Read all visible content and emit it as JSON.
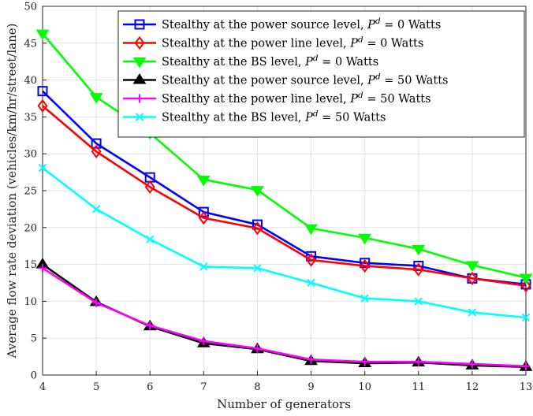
{
  "chart_data": {
    "type": "line",
    "xlabel": "Number of generators",
    "ylabel": "Average flow rate deviation (vehicles/km/hr/street/lane)",
    "x": [
      4,
      5,
      6,
      7,
      8,
      9,
      10,
      11,
      12,
      13
    ],
    "xlim": [
      4,
      13
    ],
    "ylim": [
      0,
      50
    ],
    "xticks": [
      "4",
      "5",
      "6",
      "7",
      "8",
      "9",
      "10",
      "11",
      "12",
      "13"
    ],
    "yticks": [
      "0",
      "5",
      "10",
      "15",
      "20",
      "25",
      "30",
      "35",
      "40",
      "45",
      "50"
    ],
    "grid": true,
    "legend_position": "top-right",
    "series": [
      {
        "name": "Stealthy at the power source level, P^d = 0 Watts",
        "legend_prefix": "Stealthy at the power source level, ",
        "legend_var": "P",
        "legend_sup": "d",
        "legend_suffix": " = 0 Watts",
        "color": "#0000ff",
        "marker": "square",
        "values": [
          38.5,
          31.4,
          26.8,
          22.1,
          20.4,
          16.1,
          15.2,
          14.8,
          13.1,
          12.3
        ]
      },
      {
        "name": "Stealthy at the power line level, P^d = 0 Watts",
        "legend_prefix": "Stealthy at the power line level, ",
        "legend_var": "P",
        "legend_sup": "d",
        "legend_suffix": " = 0 Watts",
        "color": "#ff0000",
        "marker": "diamond",
        "values": [
          36.5,
          30.3,
          25.5,
          21.3,
          19.9,
          15.6,
          14.8,
          14.3,
          13.1,
          12.1
        ]
      },
      {
        "name": "Stealthy at the BS level, P^d = 0 Watts",
        "legend_prefix": "Stealthy at the BS level, ",
        "legend_var": "P",
        "legend_sup": "d",
        "legend_suffix": " = 0 Watts",
        "color": "#00ff00",
        "marker": "triangle-down",
        "values": [
          46.3,
          37.7,
          32.8,
          26.5,
          25.1,
          19.9,
          18.6,
          17.1,
          14.9,
          13.2
        ]
      },
      {
        "name": "Stealthy at the power source level, P^d = 50 Watts",
        "legend_prefix": "Stealthy at the power source level, ",
        "legend_var": "P",
        "legend_sup": "d",
        "legend_suffix": " = 50 Watts",
        "color": "#000000",
        "marker": "triangle-up",
        "values": [
          15.0,
          9.9,
          6.6,
          4.3,
          3.5,
          1.9,
          1.6,
          1.7,
          1.3,
          1.1
        ]
      },
      {
        "name": "Stealthy at the power line level, P^d = 50 Watts",
        "legend_prefix": "Stealthy at the power line level, ",
        "legend_var": "P",
        "legend_sup": "d",
        "legend_suffix": " = 50 Watts",
        "color": "#ff00ff",
        "marker": "plus",
        "values": [
          14.5,
          9.8,
          6.7,
          4.6,
          3.6,
          2.1,
          1.8,
          1.8,
          1.5,
          1.2
        ]
      },
      {
        "name": "Stealthy at the BS level, P^d = 50 Watts",
        "legend_prefix": "Stealthy at the BS level, ",
        "legend_var": "P",
        "legend_sup": "d",
        "legend_suffix": " = 50 Watts",
        "color": "#00ffff",
        "marker": "x",
        "values": [
          28.1,
          22.5,
          18.4,
          14.7,
          14.5,
          12.5,
          10.4,
          10.0,
          8.5,
          7.8
        ]
      }
    ]
  }
}
